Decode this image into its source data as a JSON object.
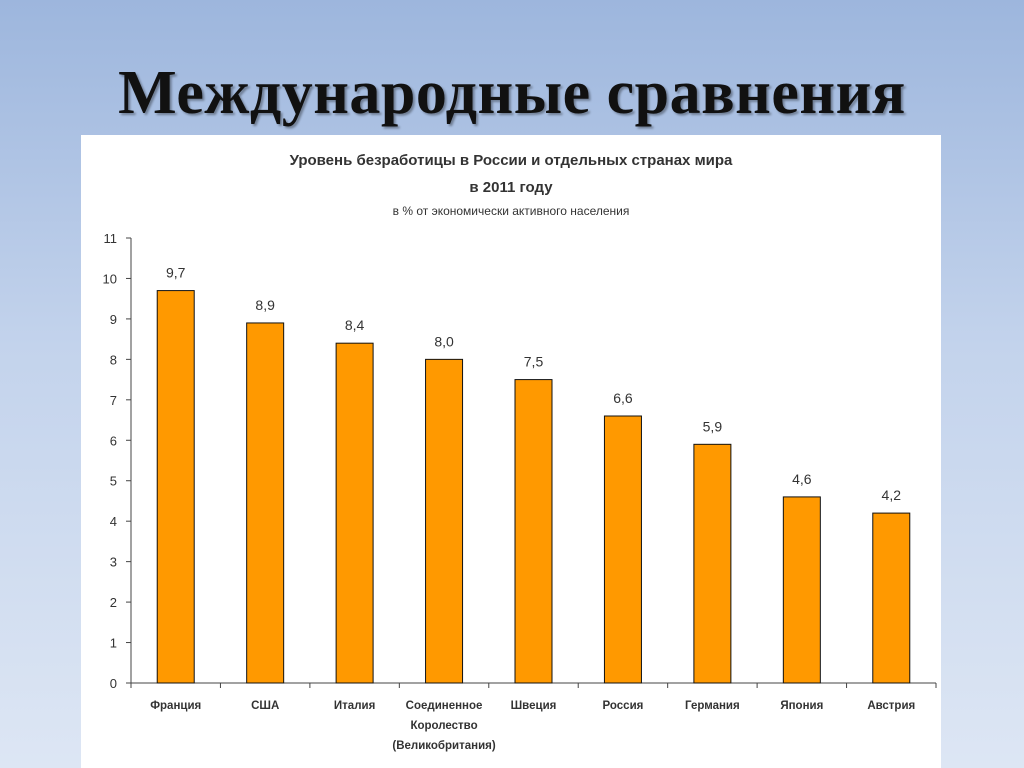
{
  "slide": {
    "title": "Международные сравнения"
  },
  "chart_data": {
    "type": "bar",
    "title": "Уровень безработицы в России и отдельных странах мира",
    "title_line2": "в 2011 году",
    "subtitle": "в % от экономически активного населения",
    "xlabel": "",
    "ylabel": "",
    "ylim": [
      0,
      11
    ],
    "yticks": [
      0,
      1,
      2,
      3,
      4,
      5,
      6,
      7,
      8,
      9,
      10,
      11
    ],
    "grid": false,
    "legend": "none",
    "categories": [
      [
        "Франция"
      ],
      [
        "США"
      ],
      [
        "Италия"
      ],
      [
        "Соединенное",
        "Королество",
        "(Великобритания)"
      ],
      [
        "Швеция"
      ],
      [
        "Россия"
      ],
      [
        "Германия"
      ],
      [
        "Япония"
      ],
      [
        "Австрия"
      ]
    ],
    "values": [
      9.7,
      8.9,
      8.4,
      8.0,
      7.5,
      6.6,
      5.9,
      4.6,
      4.2
    ],
    "value_labels": [
      "9,7",
      "8,9",
      "8,4",
      "8,0",
      "7,5",
      "6,6",
      "5,9",
      "4,6",
      "4,2"
    ],
    "colors": {
      "bar_fill": "#ff9900",
      "bar_stroke": "#111111",
      "axis": "#444444",
      "text": "#333333"
    }
  }
}
